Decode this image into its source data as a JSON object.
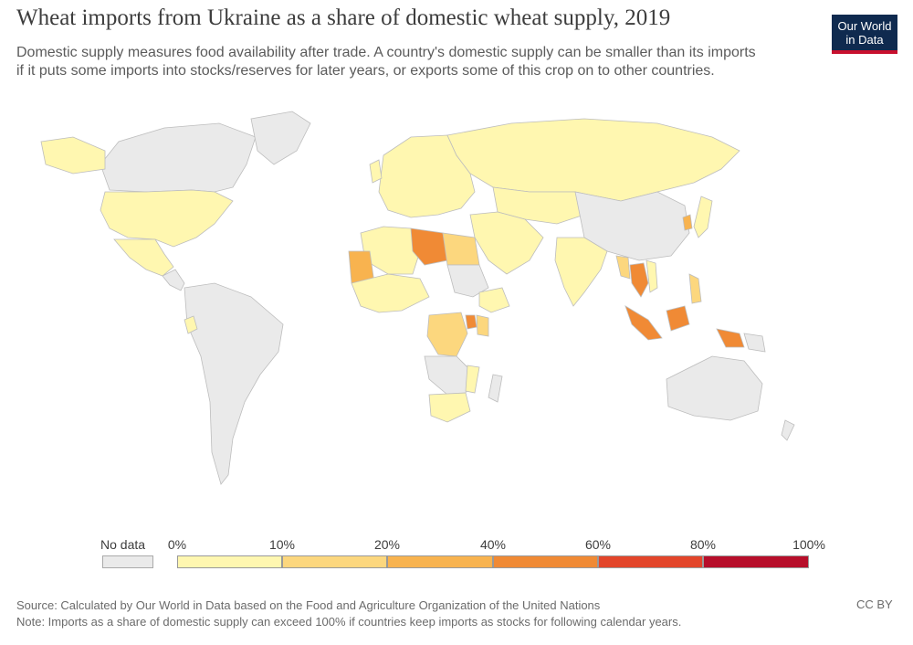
{
  "header": {
    "title": "Wheat imports from Ukraine as a share of domestic wheat supply, 2019",
    "subtitle_line1": "Domestic supply measures food availability after trade. A country's domestic supply can be smaller than its imports",
    "subtitle_line2": "if it puts some imports into stocks/reserves for later years, or exports some of this crop on to other countries."
  },
  "logo": {
    "line1": "Our World",
    "line2": "in Data"
  },
  "legend": {
    "no_data_label": "No data",
    "ticks": [
      "0%",
      "10%",
      "20%",
      "40%",
      "60%",
      "80%",
      "100%"
    ],
    "colors": [
      "#fff7b0",
      "#fcd77e",
      "#f8b34f",
      "#f08a35",
      "#e3452a",
      "#b70e2a"
    ],
    "no_data_color": "#eaeaea"
  },
  "footer": {
    "source": "Source: Calculated by Our World in Data based on the Food and Agriculture Organization of the United Nations",
    "note": "Note: Imports as a share of domestic supply can exceed 100% if countries keep imports as stocks for following calendar years.",
    "license": "CC BY"
  }
}
